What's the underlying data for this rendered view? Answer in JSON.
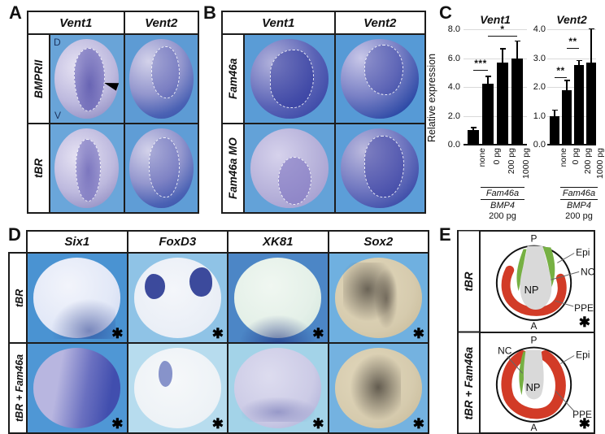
{
  "symbols": {
    "asterisk": "✱"
  },
  "panels": {
    "A": {
      "letter": "A",
      "columns": [
        "Vent1",
        "Vent2"
      ],
      "rows": [
        "BMPRII",
        "tBR"
      ],
      "embryo_marks": {
        "dorsal": "D",
        "ventral": "V"
      }
    },
    "B": {
      "letter": "B",
      "columns": [
        "Vent1",
        "Vent2"
      ],
      "rows": [
        "Fam46a",
        "Fam46a MO"
      ]
    },
    "C": {
      "letter": "C",
      "ylabel": "Relative expression"
    },
    "D": {
      "letter": "D",
      "columns": [
        "Six1",
        "FoxD3",
        "XK81",
        "Sox2"
      ],
      "rows": [
        "tBR",
        "tBR + Fam46a"
      ]
    },
    "E": {
      "letter": "E",
      "rows": [
        "tBR",
        "tBR + Fam46a"
      ],
      "diagram_labels": {
        "posterior": "P",
        "anterior": "A",
        "neural_plate": "NP",
        "neural_crest": "NC",
        "epidermis": "Epi",
        "preplacodal_ectoderm": "PPE"
      },
      "colors": {
        "neural_plate": "#d9d9d9",
        "neural_crest": "#76b043",
        "preplacodal_ectoderm": "#d23b27"
      }
    }
  },
  "chart_data": [
    {
      "type": "bar",
      "title": "Vent1",
      "ylabel": "Relative expression",
      "categories": [
        "none",
        "0 pg",
        "200 pg",
        "1000 pg"
      ],
      "values": [
        1.0,
        4.2,
        5.7,
        6.0
      ],
      "errors": [
        0.15,
        0.5,
        0.9,
        1.15
      ],
      "ylim": [
        0,
        8
      ],
      "yticks": [
        0.0,
        2.0,
        4.0,
        6.0,
        8.0
      ],
      "grid": true,
      "legend": "none",
      "bar_color": "#000000",
      "significance": [
        {
          "from": 0,
          "to": 1,
          "label": "***",
          "y": 5.2
        },
        {
          "from": 1,
          "to": 3,
          "label": "*",
          "y": 7.55
        }
      ],
      "treatment_rows": [
        {
          "label": "Fam46a",
          "from": 1,
          "to": 3,
          "italic": true,
          "line": true
        },
        {
          "label": "BMP4",
          "from": 1,
          "to": 3,
          "italic": true,
          "line": true
        },
        {
          "label": "200 pg",
          "from": 1,
          "to": 3,
          "italic": false,
          "line": false
        }
      ]
    },
    {
      "type": "bar",
      "title": "Vent2",
      "ylabel": "Relative expression",
      "categories": [
        "none",
        "0 pg",
        "200 pg",
        "1000 pg"
      ],
      "values": [
        1.0,
        1.9,
        2.75,
        2.85
      ],
      "errors": [
        0.18,
        0.3,
        0.15,
        1.15
      ],
      "ylim": [
        0,
        4
      ],
      "yticks": [
        0.0,
        1.0,
        2.0,
        3.0,
        4.0
      ],
      "grid": true,
      "legend": "none",
      "bar_color": "#000000",
      "significance": [
        {
          "from": 0,
          "to": 1,
          "label": "**",
          "y": 2.35
        },
        {
          "from": 1,
          "to": 2,
          "label": "**",
          "y": 3.35
        }
      ],
      "treatment_rows": [
        {
          "label": "Fam46a",
          "from": 1,
          "to": 3,
          "italic": true,
          "line": true
        },
        {
          "label": "BMP4",
          "from": 1,
          "to": 3,
          "italic": true,
          "line": true
        },
        {
          "label": "200 pg",
          "from": 1,
          "to": 3,
          "italic": false,
          "line": false
        }
      ]
    }
  ]
}
